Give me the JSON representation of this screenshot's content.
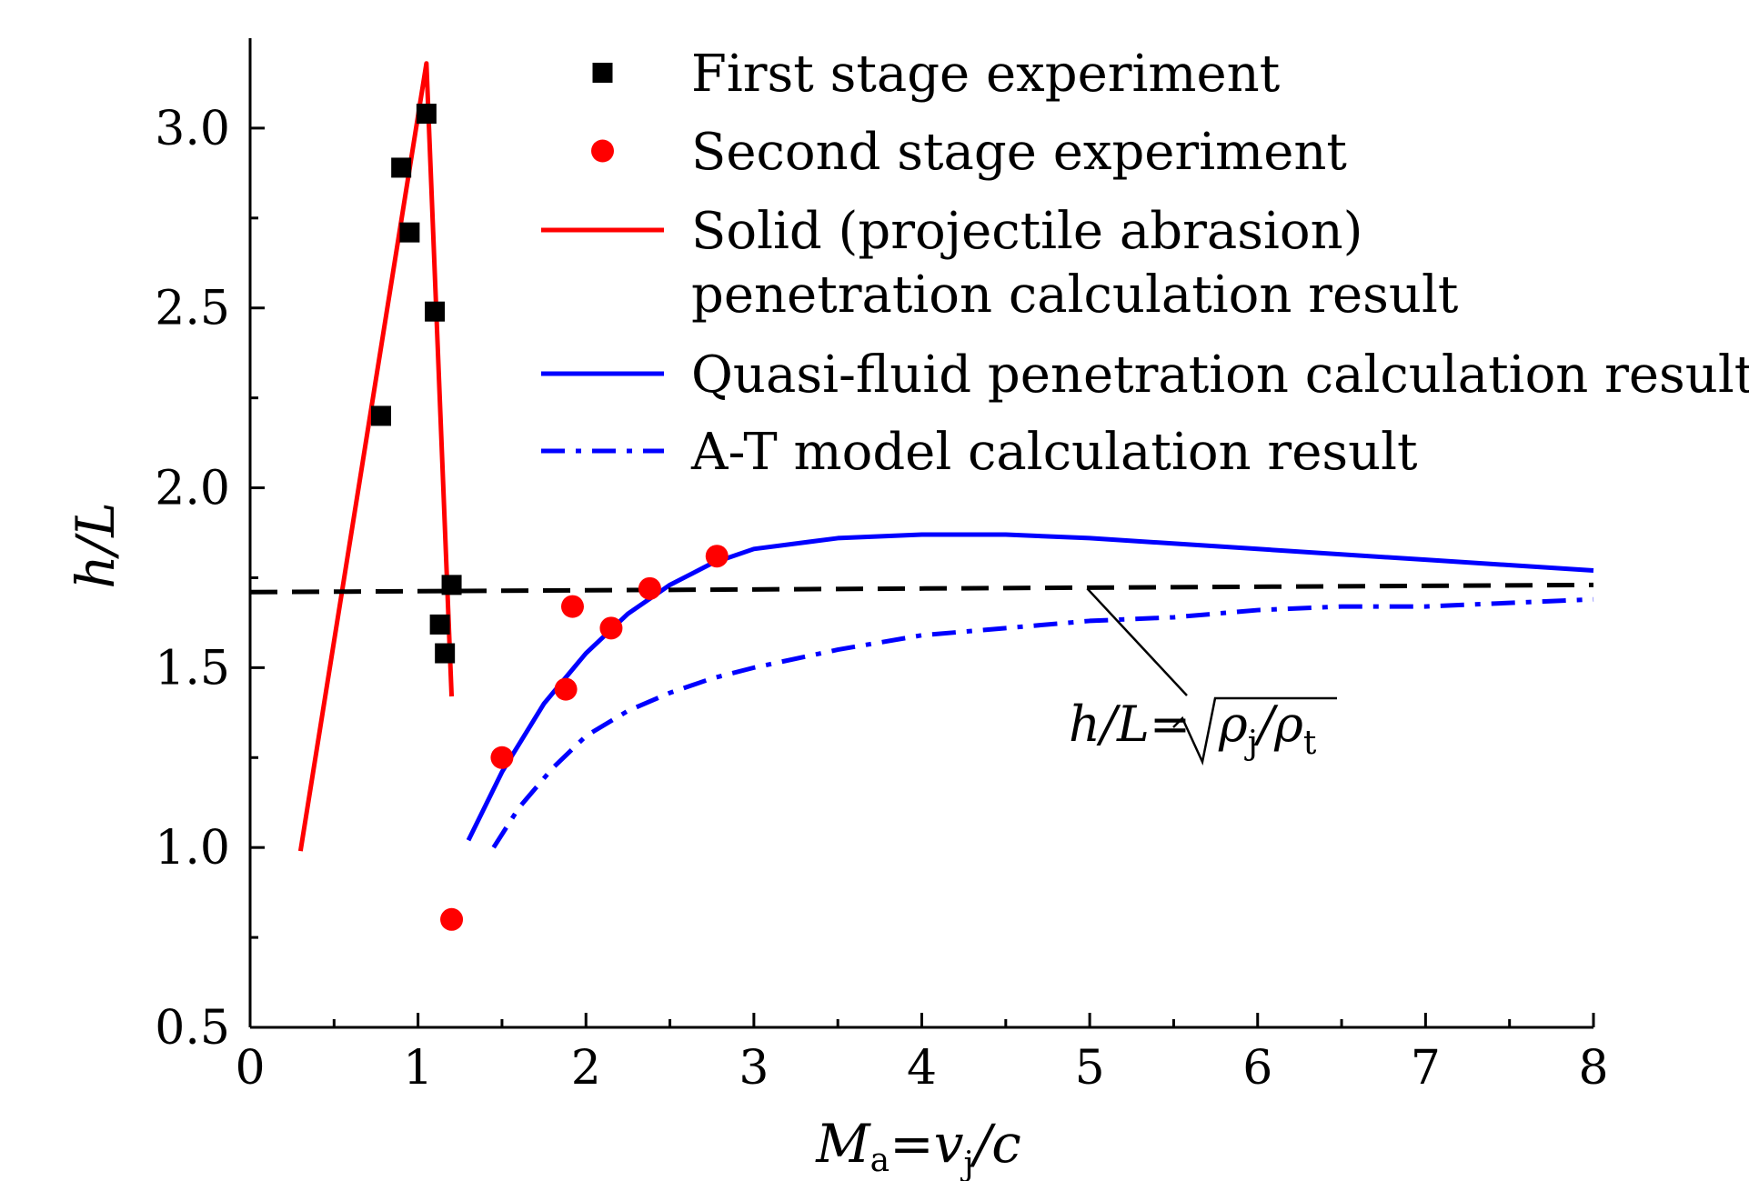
{
  "chart_data": {
    "type": "scatter",
    "title": "",
    "xlabel": {
      "main": "M",
      "sub": "a",
      "eq": "=v",
      "sub2": "j",
      "tail": "/c"
    },
    "ylabel": "h/L",
    "xlim": [
      0,
      8
    ],
    "ylim": [
      0.5,
      3.25
    ],
    "xticks": [
      "0",
      "1",
      "2",
      "3",
      "4",
      "5",
      "6",
      "7",
      "8"
    ],
    "yticks": [
      "0.5",
      "1.0",
      "1.5",
      "2.0",
      "2.5",
      "3.0"
    ],
    "grid": false,
    "legend_position": "top-right",
    "series": [
      {
        "name": "First stage experiment",
        "kind": "scatter",
        "marker": "square",
        "color": "#000000",
        "points": [
          [
            0.78,
            2.2
          ],
          [
            0.9,
            2.89
          ],
          [
            0.95,
            2.71
          ],
          [
            1.05,
            3.04
          ],
          [
            1.1,
            2.49
          ],
          [
            1.13,
            1.62
          ],
          [
            1.16,
            1.54
          ],
          [
            1.2,
            1.73
          ]
        ]
      },
      {
        "name": "Second stage experiment",
        "kind": "scatter",
        "marker": "circle",
        "color": "#ff0000",
        "points": [
          [
            1.2,
            0.8
          ],
          [
            1.5,
            1.25
          ],
          [
            1.88,
            1.44
          ],
          [
            1.92,
            1.67
          ],
          [
            2.15,
            1.61
          ],
          [
            2.38,
            1.72
          ],
          [
            2.78,
            1.81
          ]
        ]
      },
      {
        "name": "Solid (projectile abrasion) penetration calculation result",
        "name_lines": [
          "Solid (projectile abrasion)",
          "penetration calculation result"
        ],
        "kind": "line",
        "dash": "solid",
        "color": "#ff0000",
        "points": [
          [
            0.3,
            0.99
          ],
          [
            1.05,
            3.18
          ],
          [
            1.2,
            1.42
          ]
        ]
      },
      {
        "name": "Quasi-fluid penetration calculation result",
        "kind": "line",
        "dash": "solid",
        "color": "#0000ff",
        "points": [
          [
            1.3,
            1.02
          ],
          [
            1.5,
            1.21
          ],
          [
            1.75,
            1.4
          ],
          [
            2.0,
            1.54
          ],
          [
            2.25,
            1.65
          ],
          [
            2.5,
            1.73
          ],
          [
            2.75,
            1.79
          ],
          [
            3.0,
            1.83
          ],
          [
            3.5,
            1.86
          ],
          [
            4.0,
            1.87
          ],
          [
            4.5,
            1.87
          ],
          [
            5.0,
            1.86
          ],
          [
            6.0,
            1.83
          ],
          [
            7.0,
            1.8
          ],
          [
            8.0,
            1.77
          ]
        ]
      },
      {
        "name": "A-T model calculation result",
        "kind": "line",
        "dash": "dashdot",
        "color": "#0000ff",
        "points": [
          [
            1.45,
            1.0
          ],
          [
            1.6,
            1.11
          ],
          [
            1.8,
            1.22
          ],
          [
            2.0,
            1.31
          ],
          [
            2.25,
            1.38
          ],
          [
            2.5,
            1.43
          ],
          [
            2.75,
            1.47
          ],
          [
            3.0,
            1.5
          ],
          [
            3.5,
            1.55
          ],
          [
            4.0,
            1.59
          ],
          [
            4.5,
            1.61
          ],
          [
            5.0,
            1.63
          ],
          [
            5.5,
            1.64
          ],
          [
            6.0,
            1.66
          ],
          [
            6.5,
            1.67
          ],
          [
            7.0,
            1.67
          ],
          [
            7.5,
            1.68
          ],
          [
            8.0,
            1.69
          ]
        ]
      },
      {
        "name": "",
        "kind": "line",
        "dash": "dashed",
        "color": "#000000",
        "points": [
          [
            0.0,
            1.71
          ],
          [
            8.0,
            1.73
          ]
        ]
      }
    ],
    "annotation": {
      "text_left": "h/L=",
      "rho": "ρ",
      "sub_j": "j",
      "slash": "/",
      "sub_t": "t",
      "target": [
        5.05,
        1.72
      ]
    }
  }
}
